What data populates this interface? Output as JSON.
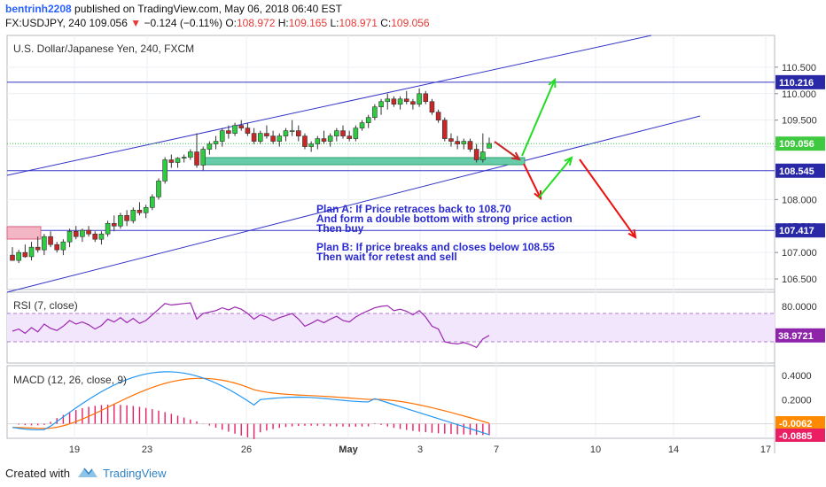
{
  "header": {
    "author": "bentrinh2208",
    "published": "published on TradingView.com, May 06, 2018 06:40 EST",
    "symbol": "FX:USDJPY, 240",
    "last": "109.056",
    "arrow": "▼",
    "change": "−0.124 (−0.11%)",
    "o_label": "O:",
    "o": "108.972",
    "h_label": "H:",
    "h": "109.165",
    "l_label": "L:",
    "l": "108.971",
    "c_label": "C:",
    "c": "109.056"
  },
  "footer": {
    "created_with": "Created with",
    "brand": "TradingView"
  },
  "colors": {
    "up": "#2ecc40",
    "down": "#c62828",
    "channel": "#3535c8",
    "rsi": "#9c27b0",
    "macd": "#2196f3",
    "signal": "#ff6f00",
    "hist": "#e91e63",
    "zone": "#66ccaa",
    "green_arrow": "#22dd22",
    "red_arrow": "#ee1111"
  },
  "chart_data": [
    {
      "type": "candlestick",
      "title": "U.S. Dollar/Japanese Yen, 240, FXCM",
      "ylim": [
        106.3,
        111.1
      ],
      "y_ticks": [
        "110.500",
        "110.000",
        "109.500",
        "109.000",
        "108.000",
        "107.500",
        "107.000",
        "106.500"
      ],
      "x_ticks": [
        "19",
        "23",
        "26",
        "May",
        "3",
        "7",
        "10",
        "14",
        "17"
      ],
      "candles": [
        [
          106.95,
          107.1,
          106.85,
          106.85
        ],
        [
          106.85,
          107.05,
          106.8,
          107.0
        ],
        [
          107.0,
          107.15,
          106.9,
          106.92
        ],
        [
          106.92,
          107.2,
          106.85,
          107.1
        ],
        [
          107.1,
          107.3,
          107.0,
          107.05
        ],
        [
          107.05,
          107.35,
          106.95,
          107.3
        ],
        [
          107.3,
          107.4,
          107.1,
          107.15
        ],
        [
          107.15,
          107.2,
          107.0,
          107.05
        ],
        [
          107.05,
          107.25,
          106.95,
          107.2
        ],
        [
          107.2,
          107.45,
          107.1,
          107.4
        ],
        [
          107.4,
          107.5,
          107.25,
          107.3
        ],
        [
          107.3,
          107.45,
          107.2,
          107.42
        ],
        [
          107.42,
          107.5,
          107.3,
          107.35
        ],
        [
          107.35,
          107.4,
          107.2,
          107.25
        ],
        [
          107.25,
          107.4,
          107.15,
          107.35
        ],
        [
          107.35,
          107.6,
          107.3,
          107.55
        ],
        [
          107.55,
          107.7,
          107.4,
          107.5
        ],
        [
          107.5,
          107.75,
          107.45,
          107.7
        ],
        [
          107.7,
          107.8,
          107.5,
          107.6
        ],
        [
          107.6,
          107.85,
          107.55,
          107.8
        ],
        [
          107.8,
          107.95,
          107.7,
          107.75
        ],
        [
          107.75,
          107.9,
          107.65,
          107.85
        ],
        [
          107.85,
          108.1,
          107.8,
          108.05
        ],
        [
          108.05,
          108.4,
          108.0,
          108.35
        ],
        [
          108.35,
          108.8,
          108.3,
          108.75
        ],
        [
          108.75,
          108.85,
          108.6,
          108.7
        ],
        [
          108.7,
          108.8,
          108.6,
          108.78
        ],
        [
          108.78,
          108.85,
          108.7,
          108.8
        ],
        [
          108.8,
          108.95,
          108.75,
          108.9
        ],
        [
          108.9,
          109.25,
          108.6,
          108.65
        ],
        [
          108.65,
          109.0,
          108.55,
          108.95
        ],
        [
          108.95,
          109.1,
          108.85,
          109.05
        ],
        [
          109.05,
          109.2,
          108.95,
          109.1
        ],
        [
          109.1,
          109.35,
          109.0,
          109.3
        ],
        [
          109.3,
          109.4,
          109.15,
          109.25
        ],
        [
          109.25,
          109.45,
          109.2,
          109.4
        ],
        [
          109.4,
          109.5,
          109.3,
          109.35
        ],
        [
          109.35,
          109.45,
          109.2,
          109.25
        ],
        [
          109.25,
          109.35,
          109.05,
          109.1
        ],
        [
          109.1,
          109.3,
          109.05,
          109.25
        ],
        [
          109.25,
          109.4,
          109.15,
          109.2
        ],
        [
          109.2,
          109.3,
          109.05,
          109.1
        ],
        [
          109.1,
          109.25,
          109.0,
          109.2
        ],
        [
          109.2,
          109.35,
          109.1,
          109.3
        ],
        [
          109.3,
          109.5,
          109.2,
          109.3
        ],
        [
          109.3,
          109.4,
          109.1,
          109.2
        ],
        [
          109.2,
          109.25,
          108.95,
          109.0
        ],
        [
          109.0,
          109.1,
          108.9,
          109.05
        ],
        [
          109.05,
          109.2,
          108.95,
          109.15
        ],
        [
          109.15,
          109.3,
          109.05,
          109.1
        ],
        [
          109.1,
          109.25,
          109.0,
          109.2
        ],
        [
          109.2,
          109.35,
          109.1,
          109.3
        ],
        [
          109.3,
          109.4,
          109.15,
          109.2
        ],
        [
          109.2,
          109.3,
          109.1,
          109.15
        ],
        [
          109.15,
          109.4,
          109.1,
          109.35
        ],
        [
          109.35,
          109.5,
          109.3,
          109.45
        ],
        [
          109.45,
          109.6,
          109.35,
          109.55
        ],
        [
          109.55,
          109.8,
          109.5,
          109.75
        ],
        [
          109.75,
          109.9,
          109.6,
          109.85
        ],
        [
          109.85,
          110.0,
          109.7,
          109.9
        ],
        [
          109.9,
          109.95,
          109.75,
          109.8
        ],
        [
          109.8,
          109.95,
          109.7,
          109.9
        ],
        [
          109.9,
          110.05,
          109.8,
          109.85
        ],
        [
          109.85,
          109.9,
          109.7,
          109.8
        ],
        [
          109.8,
          110.1,
          109.75,
          110.0
        ],
        [
          110.0,
          110.05,
          109.8,
          109.85
        ],
        [
          109.85,
          109.9,
          109.6,
          109.65
        ],
        [
          109.65,
          109.7,
          109.45,
          109.5
        ],
        [
          109.5,
          109.55,
          109.1,
          109.15
        ],
        [
          109.15,
          109.25,
          109.0,
          109.1
        ],
        [
          109.1,
          109.2,
          108.95,
          109.05
        ],
        [
          109.05,
          109.15,
          108.95,
          109.1
        ],
        [
          109.1,
          109.15,
          108.9,
          108.95
        ],
        [
          108.95,
          109.05,
          108.7,
          108.75
        ],
        [
          108.75,
          109.25,
          108.7,
          108.9
        ],
        [
          108.97,
          109.17,
          108.97,
          109.06
        ]
      ],
      "levels": [
        {
          "value": 110.216,
          "label": "110.216"
        },
        {
          "value": 109.056,
          "label": "109.056",
          "style": "current"
        },
        {
          "value": 108.545,
          "label": "108.545"
        },
        {
          "value": 107.417,
          "label": "107.417"
        }
      ],
      "annotations": {
        "plan_a": [
          "Plan A: If Price retraces back to 108.70",
          "And form a double bottom with strong price action",
          "Then buy"
        ],
        "plan_b": [
          "Plan B: If price breaks and closes below 108.55",
          "Then wait for retest and sell"
        ]
      }
    },
    {
      "type": "line",
      "title": "RSI (7, close)",
      "y_ticks": [
        "80.0000"
      ],
      "band": [
        30,
        70
      ],
      "series": [
        {
          "name": "RSI",
          "last": "38.9721",
          "values": [
            45,
            48,
            42,
            50,
            44,
            55,
            49,
            46,
            52,
            60,
            55,
            58,
            54,
            48,
            53,
            62,
            58,
            64,
            57,
            63,
            56,
            60,
            68,
            76,
            84,
            82,
            83,
            84,
            85,
            62,
            70,
            72,
            74,
            78,
            75,
            79,
            76,
            70,
            62,
            68,
            65,
            60,
            64,
            67,
            70,
            62,
            52,
            56,
            61,
            57,
            62,
            66,
            60,
            58,
            65,
            70,
            74,
            78,
            80,
            81,
            74,
            76,
            73,
            68,
            74,
            65,
            52,
            48,
            30,
            28,
            27,
            29,
            26,
            22,
            34,
            39
          ]
        }
      ]
    },
    {
      "type": "line",
      "title": "MACD (12, 26, close, 9)",
      "y_ticks": [
        "0.4000",
        "0.2000"
      ],
      "series": [
        {
          "name": "MACD",
          "last": "-0.0885"
        },
        {
          "name": "Signal",
          "last": "-0.0062"
        }
      ],
      "histogram": "pink bars"
    }
  ]
}
